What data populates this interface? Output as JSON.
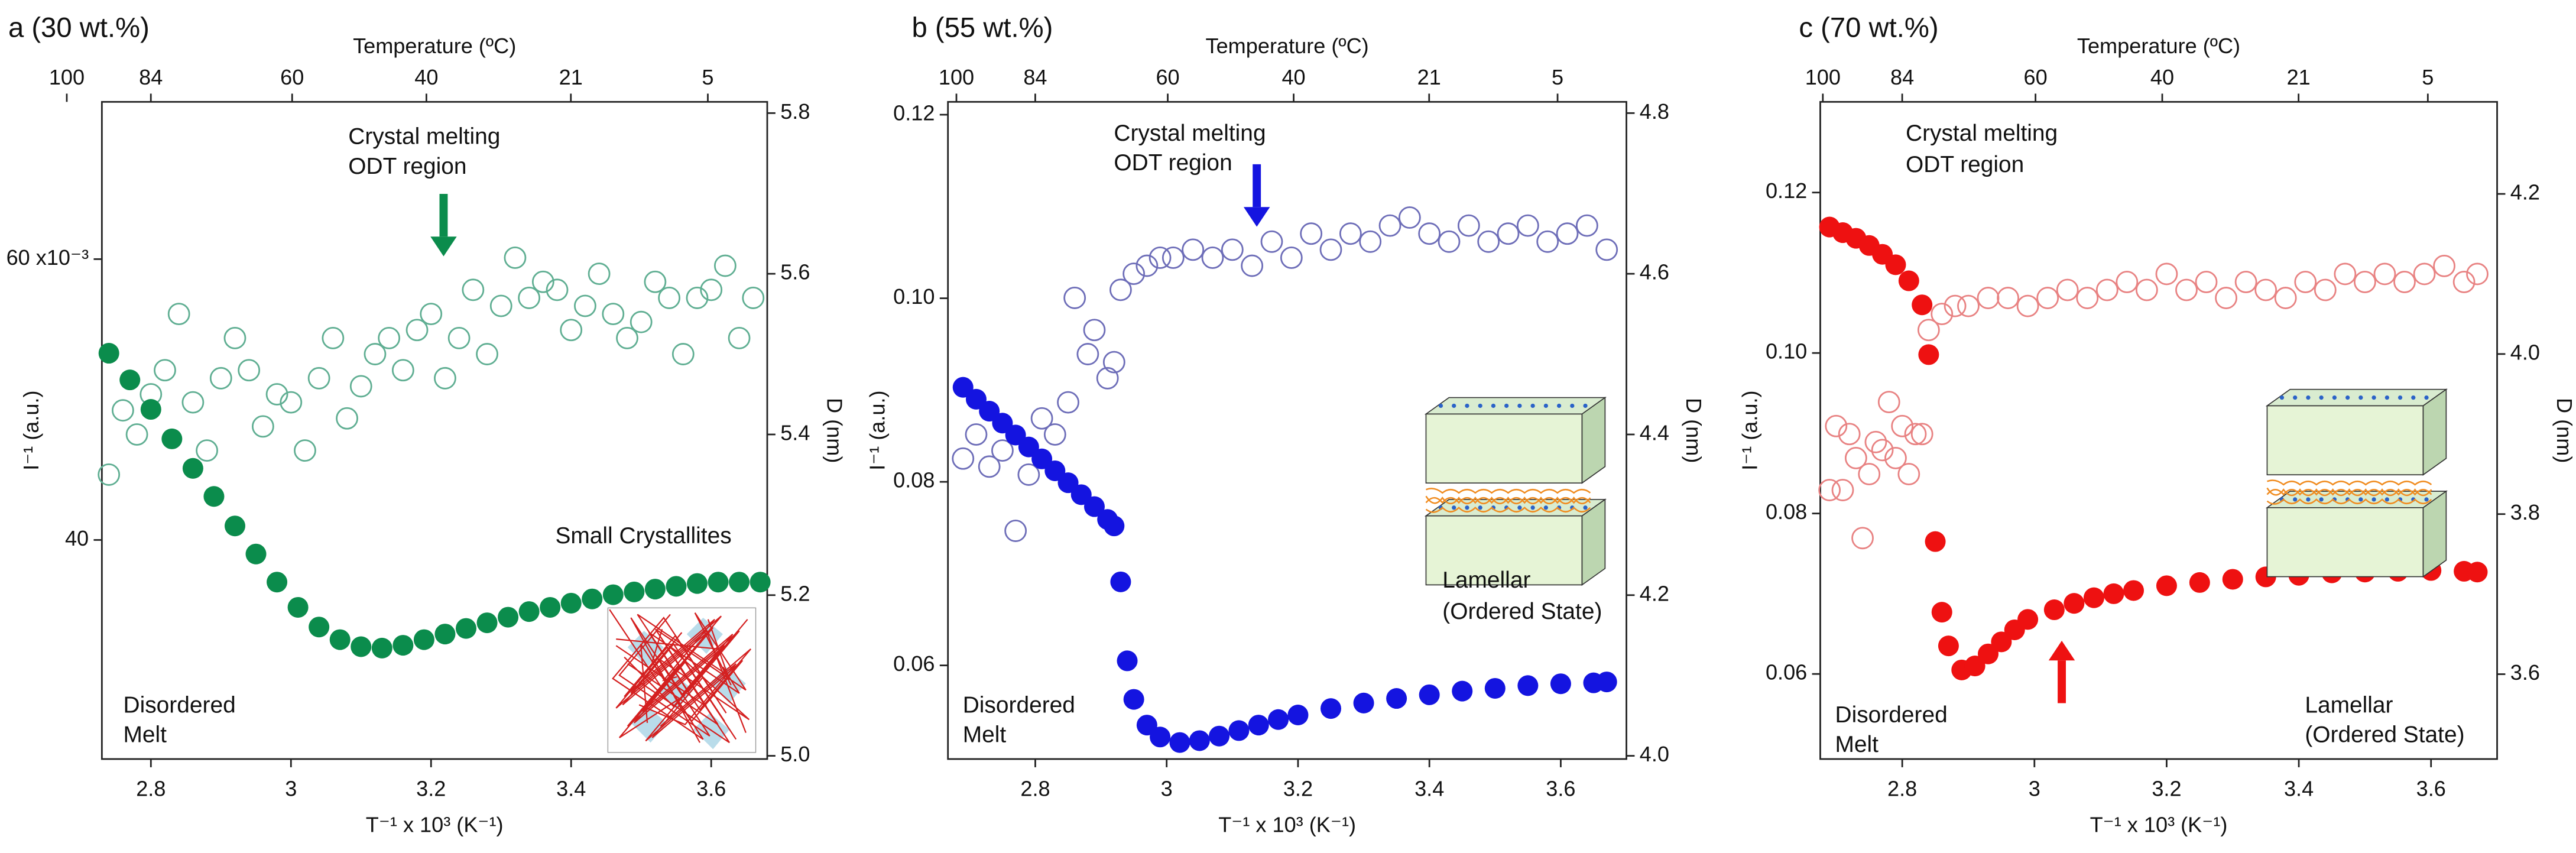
{
  "chart_data": [
    {
      "type": "scatter",
      "title": "a (30 wt.%)",
      "xlabel": "T⁻¹ x 10³ (K⁻¹)",
      "ylabel": "I⁻¹ (a.u.)",
      "y2label": "D (nm)",
      "x2label": "Temperature (ºC)",
      "xlim": [
        2.73,
        3.68
      ],
      "xticks": [
        2.8,
        3.0,
        3.2,
        3.4,
        3.6
      ],
      "x2ticks": [
        100,
        84,
        60,
        40,
        21,
        5
      ],
      "ylim": [
        24.4,
        71.2
      ],
      "yticks": [
        40,
        {
          "value": 60,
          "label": "60 x10⁻³"
        }
      ],
      "y2lim": [
        4.996,
        5.814
      ],
      "y2ticks": [
        {
          "value": 5,
          "label": "5.0"
        },
        5.2,
        5.4,
        5.6,
        5.8
      ],
      "annotations": [
        "Crystal melting",
        "ODT region",
        "Small Crystallites",
        "Disordered",
        "Melt"
      ],
      "series": [
        {
          "color": "#5fae92",
          "marker": "open",
          "axis": "y2",
          "x": [
            2.74,
            2.76,
            2.78,
            2.8,
            2.82,
            2.84,
            2.86,
            2.88,
            2.9,
            2.92,
            2.94,
            2.96,
            2.98,
            3.0,
            3.02,
            3.04,
            3.06,
            3.08,
            3.1,
            3.12,
            3.14,
            3.16,
            3.18,
            3.2,
            3.22,
            3.24,
            3.26,
            3.28,
            3.3,
            3.32,
            3.34,
            3.36,
            3.38,
            3.4,
            3.42,
            3.44,
            3.46,
            3.48,
            3.5,
            3.52,
            3.54,
            3.56,
            3.58,
            3.6,
            3.62,
            3.64,
            3.66
          ],
          "values": [
            5.35,
            5.43,
            5.4,
            5.45,
            5.48,
            5.55,
            5.44,
            5.38,
            5.47,
            5.52,
            5.48,
            5.41,
            5.45,
            5.44,
            5.38,
            5.47,
            5.52,
            5.42,
            5.46,
            5.5,
            5.52,
            5.48,
            5.53,
            5.55,
            5.47,
            5.52,
            5.58,
            5.5,
            5.56,
            5.62,
            5.57,
            5.59,
            5.58,
            5.53,
            5.56,
            5.6,
            5.55,
            5.52,
            5.54,
            5.59,
            5.57,
            5.5,
            5.57,
            5.58,
            5.61,
            5.52,
            5.57
          ]
        },
        {
          "color": "#0b8c4c",
          "marker": "filled",
          "axis": "y",
          "x": [
            2.74,
            2.77,
            2.8,
            2.83,
            2.86,
            2.89,
            2.92,
            2.95,
            2.98,
            3.01,
            3.04,
            3.07,
            3.1,
            3.13,
            3.16,
            3.19,
            3.22,
            3.25,
            3.28,
            3.31,
            3.34,
            3.37,
            3.4,
            3.43,
            3.46,
            3.49,
            3.52,
            3.55,
            3.58,
            3.61,
            3.64,
            3.67
          ],
          "values": [
            53.3,
            51.4,
            49.3,
            47.2,
            45.1,
            43.1,
            41.0,
            39.0,
            37.0,
            35.2,
            33.8,
            32.9,
            32.4,
            32.3,
            32.5,
            32.9,
            33.3,
            33.7,
            34.1,
            34.5,
            34.9,
            35.2,
            35.5,
            35.8,
            36.1,
            36.3,
            36.5,
            36.7,
            36.9,
            37.0,
            37.0,
            37.0
          ]
        }
      ]
    },
    {
      "type": "scatter",
      "title": "b (55 wt.%)",
      "xlabel": "T⁻¹ x 10³ (K⁻¹)",
      "ylabel": "I⁻¹ (a.u.)",
      "y2label": "D (nm)",
      "x2label": "Temperature (ºC)",
      "xlim": [
        2.667,
        3.7
      ],
      "xticks": [
        2.8,
        3.0,
        3.2,
        3.4,
        3.6
      ],
      "x2ticks": [
        100,
        84,
        60,
        40,
        21,
        5
      ],
      "ylim": [
        0.0498,
        0.1214
      ],
      "yticks": [
        0.06,
        0.08,
        {
          "value": 0.1,
          "label": "0.10"
        },
        0.12
      ],
      "y2lim": [
        3.996,
        4.814
      ],
      "y2ticks": [
        {
          "value": 4,
          "label": "4.0"
        },
        4.2,
        4.4,
        4.6,
        4.8
      ],
      "annotations": [
        "Crystal melting",
        "ODT region",
        "Lamellar",
        "(Ordered State)",
        "Disordered",
        "Melt"
      ],
      "series": [
        {
          "color": "#6d6db8",
          "marker": "open",
          "axis": "y2",
          "x": [
            2.69,
            2.71,
            2.73,
            2.75,
            2.77,
            2.79,
            2.81,
            2.83,
            2.85,
            2.86,
            2.88,
            2.89,
            2.91,
            2.92,
            2.93,
            2.95,
            2.97,
            2.99,
            3.01,
            3.04,
            3.07,
            3.1,
            3.13,
            3.16,
            3.19,
            3.22,
            3.25,
            3.28,
            3.31,
            3.34,
            3.37,
            3.4,
            3.43,
            3.46,
            3.49,
            3.52,
            3.55,
            3.58,
            3.61,
            3.64,
            3.67
          ],
          "values": [
            4.37,
            4.4,
            4.36,
            4.38,
            4.28,
            4.35,
            4.42,
            4.4,
            4.44,
            4.57,
            4.5,
            4.53,
            4.47,
            4.49,
            4.58,
            4.6,
            4.61,
            4.62,
            4.62,
            4.63,
            4.62,
            4.63,
            4.61,
            4.64,
            4.62,
            4.65,
            4.63,
            4.65,
            4.64,
            4.66,
            4.67,
            4.65,
            4.64,
            4.66,
            4.64,
            4.65,
            4.66,
            4.64,
            4.65,
            4.66,
            4.63
          ]
        },
        {
          "color": "#1414e0",
          "marker": "filled",
          "axis": "y",
          "x": [
            2.69,
            2.71,
            2.73,
            2.75,
            2.77,
            2.79,
            2.81,
            2.83,
            2.85,
            2.87,
            2.89,
            2.91,
            2.92,
            2.93,
            2.94,
            2.95,
            2.97,
            2.99,
            3.02,
            3.05,
            3.08,
            3.11,
            3.14,
            3.17,
            3.2,
            3.25,
            3.3,
            3.35,
            3.4,
            3.45,
            3.5,
            3.55,
            3.6,
            3.65,
            3.67
          ],
          "values": [
            0.0903,
            0.089,
            0.0877,
            0.0864,
            0.0851,
            0.0838,
            0.0825,
            0.0812,
            0.0799,
            0.0786,
            0.0773,
            0.0759,
            0.0752,
            0.0691,
            0.0605,
            0.0563,
            0.0535,
            0.0522,
            0.0516,
            0.0518,
            0.0523,
            0.0529,
            0.0535,
            0.0541,
            0.0546,
            0.0553,
            0.0559,
            0.0564,
            0.0568,
            0.0572,
            0.0575,
            0.0578,
            0.058,
            0.0581,
            0.0582
          ]
        }
      ]
    },
    {
      "type": "scatter",
      "title": "c (70 wt.%)",
      "xlabel": "T⁻¹ x 10³ (K⁻¹)",
      "ylabel": "I⁻¹ (a.u.)",
      "y2label": "D (nm)",
      "x2label": "Temperature (ºC)",
      "xlim": [
        2.676,
        3.7
      ],
      "xticks": [
        2.8,
        3.0,
        3.2,
        3.4,
        3.6
      ],
      "x2ticks": [
        100,
        84,
        60,
        40,
        21,
        5
      ],
      "ylim": [
        0.0494,
        0.1313
      ],
      "yticks": [
        0.06,
        0.08,
        {
          "value": 0.1,
          "label": "0.10"
        },
        0.12
      ],
      "y2lim": [
        3.494,
        4.315
      ],
      "y2ticks": [
        3.6,
        3.8,
        {
          "value": 4,
          "label": "4.0"
        },
        4.2
      ],
      "annotations": [
        "Crystal melting",
        "ODT region",
        "Disordered",
        "Melt",
        "Lamellar",
        "(Ordered State)"
      ],
      "series": [
        {
          "color": "#e88282",
          "marker": "open",
          "axis": "y2",
          "x": [
            2.69,
            2.7,
            2.71,
            2.72,
            2.73,
            2.74,
            2.75,
            2.76,
            2.77,
            2.78,
            2.79,
            2.8,
            2.81,
            2.82,
            2.83,
            2.84,
            2.86,
            2.88,
            2.9,
            2.93,
            2.96,
            2.99,
            3.02,
            3.05,
            3.08,
            3.11,
            3.14,
            3.17,
            3.2,
            3.23,
            3.26,
            3.29,
            3.32,
            3.35,
            3.38,
            3.41,
            3.44,
            3.47,
            3.5,
            3.53,
            3.56,
            3.59,
            3.62,
            3.65,
            3.67
          ],
          "values": [
            3.83,
            3.91,
            3.83,
            3.9,
            3.87,
            3.77,
            3.85,
            3.89,
            3.88,
            3.94,
            3.87,
            3.91,
            3.85,
            3.9,
            3.9,
            4.03,
            4.05,
            4.06,
            4.06,
            4.07,
            4.07,
            4.06,
            4.07,
            4.08,
            4.07,
            4.08,
            4.09,
            4.08,
            4.1,
            4.08,
            4.09,
            4.07,
            4.09,
            4.08,
            4.07,
            4.09,
            4.08,
            4.1,
            4.09,
            4.1,
            4.09,
            4.1,
            4.11,
            4.09,
            4.1
          ]
        },
        {
          "color": "#ee1111",
          "marker": "filled",
          "axis": "y",
          "x": [
            2.69,
            2.71,
            2.73,
            2.75,
            2.77,
            2.79,
            2.81,
            2.83,
            2.84,
            2.85,
            2.86,
            2.87,
            2.89,
            2.91,
            2.93,
            2.95,
            2.97,
            2.99,
            3.03,
            3.06,
            3.09,
            3.12,
            3.15,
            3.2,
            3.25,
            3.3,
            3.35,
            3.4,
            3.45,
            3.5,
            3.55,
            3.6,
            3.65,
            3.67
          ],
          "values": [
            0.1157,
            0.115,
            0.1143,
            0.1134,
            0.1123,
            0.111,
            0.109,
            0.106,
            0.0998,
            0.0765,
            0.0677,
            0.0635,
            0.0605,
            0.061,
            0.0625,
            0.064,
            0.0655,
            0.0668,
            0.068,
            0.0688,
            0.0695,
            0.07,
            0.0704,
            0.071,
            0.0714,
            0.0718,
            0.0721,
            0.0723,
            0.0726,
            0.0727,
            0.0728,
            0.0729,
            0.0728,
            0.0727
          ]
        }
      ]
    }
  ]
}
